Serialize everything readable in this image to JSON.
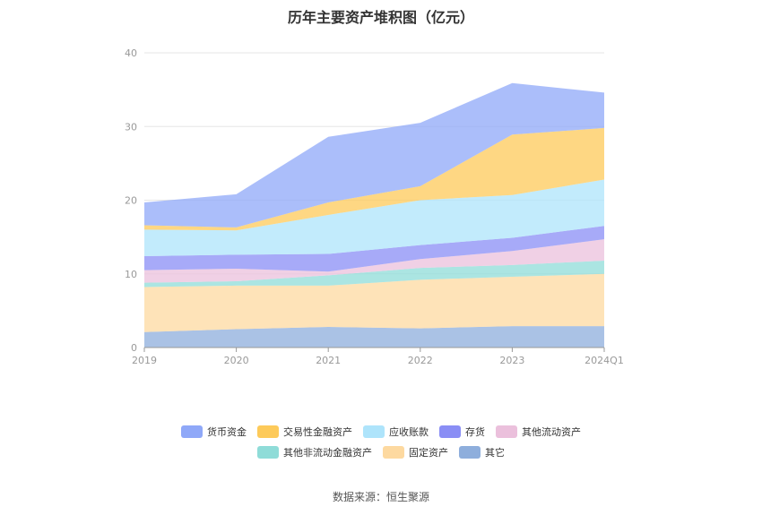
{
  "title": "历年主要资产堆积图（亿元）",
  "source": "数据来源：恒生聚源",
  "chart_data": {
    "type": "area",
    "stacked": true,
    "categories": [
      "2019",
      "2020",
      "2021",
      "2022",
      "2023",
      "2024Q1"
    ],
    "ylim": [
      0,
      40
    ],
    "yticks": [
      0,
      10,
      20,
      30,
      40
    ],
    "grid": true,
    "legend_position": "bottom",
    "series": [
      {
        "name": "其它",
        "color": "#8eaedc",
        "values": [
          2.1,
          2.5,
          2.8,
          2.6,
          2.9,
          2.9
        ]
      },
      {
        "name": "固定资产",
        "color": "#fdd9a0",
        "values": [
          6.1,
          5.9,
          5.6,
          6.6,
          6.7,
          7.1
        ]
      },
      {
        "name": "其他非流动金融资产",
        "color": "#8fdcd8",
        "values": [
          0.6,
          0.6,
          1.4,
          1.6,
          1.6,
          1.8
        ]
      },
      {
        "name": "其他流动资产",
        "color": "#ebc0dc",
        "values": [
          1.7,
          1.7,
          0.5,
          1.2,
          1.9,
          2.9
        ]
      },
      {
        "name": "存货",
        "color": "#8a8ef5",
        "values": [
          1.9,
          1.9,
          2.4,
          1.9,
          1.8,
          1.8
        ]
      },
      {
        "name": "应收账款",
        "color": "#aee4fb",
        "values": [
          3.6,
          3.3,
          5.3,
          6.1,
          5.8,
          6.3
        ]
      },
      {
        "name": "交易性金融资产",
        "color": "#fdca5a",
        "values": [
          0.6,
          0.4,
          1.7,
          1.9,
          8.2,
          7.0
        ]
      },
      {
        "name": "货币资金",
        "color": "#8fa8f8",
        "values": [
          3.1,
          4.5,
          8.9,
          8.6,
          7.0,
          4.8
        ]
      }
    ],
    "legend_rows": [
      [
        "货币资金",
        "交易性金融资产",
        "应收账款",
        "存货",
        "其他流动资产"
      ],
      [
        "其他非流动金融资产",
        "固定资产",
        "其它"
      ]
    ]
  }
}
